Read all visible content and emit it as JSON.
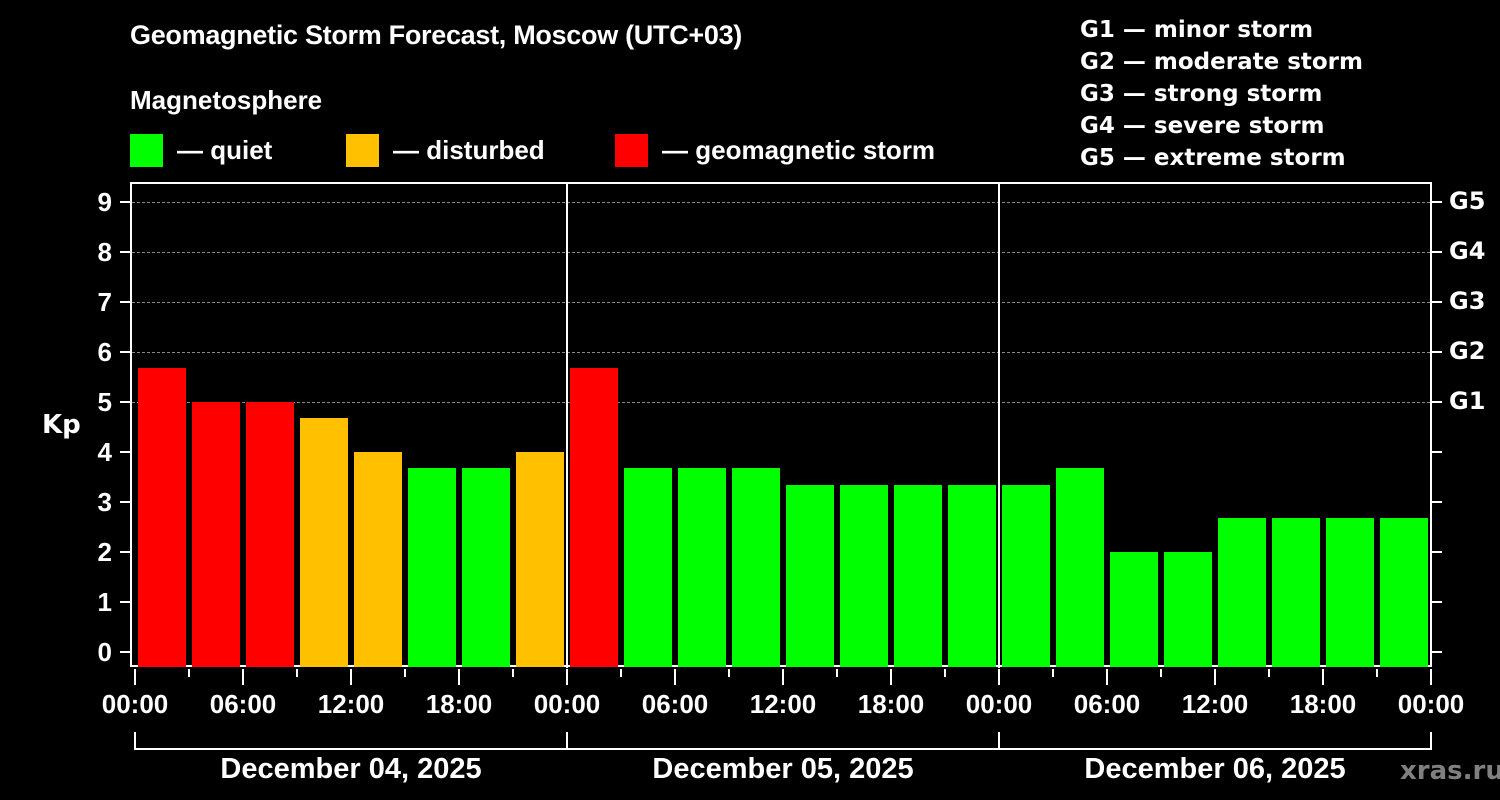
{
  "header": {
    "title": "Geomagnetic Storm Forecast, Moscow (UTC+03)",
    "subtitle": "Magnetosphere"
  },
  "legend": [
    {
      "label": "— quiet",
      "color": "#00ff00"
    },
    {
      "label": "— disturbed",
      "color": "#ffc000"
    },
    {
      "label": "— geomagnetic storm",
      "color": "#ff0000"
    }
  ],
  "g_legend": [
    "G1 — minor storm",
    "G2 — moderate storm",
    "G3 — strong storm",
    "G4 — severe storm",
    "G5 — extreme storm"
  ],
  "axis": {
    "ylabel": "Kp",
    "yticks": [
      "0",
      "1",
      "2",
      "3",
      "4",
      "5",
      "6",
      "7",
      "8",
      "9"
    ],
    "right_labels": [
      {
        "kp": 5,
        "label": "G1"
      },
      {
        "kp": 6,
        "label": "G2"
      },
      {
        "kp": 7,
        "label": "G3"
      },
      {
        "kp": 8,
        "label": "G4"
      },
      {
        "kp": 9,
        "label": "G5"
      }
    ],
    "xticks": [
      "00:00",
      "06:00",
      "12:00",
      "18:00",
      "00:00",
      "06:00",
      "12:00",
      "18:00",
      "00:00",
      "06:00",
      "12:00",
      "18:00",
      "00:00"
    ],
    "dates": [
      "December 04, 2025",
      "December 05, 2025",
      "December 06, 2025"
    ]
  },
  "watermark": "xras.ru",
  "colors": {
    "quiet": "#00ff00",
    "disturbed": "#ffc000",
    "storm": "#ff0000"
  },
  "chart_data": {
    "type": "bar",
    "title": "Geomagnetic Storm Forecast, Moscow (UTC+03)",
    "ylabel": "Kp",
    "xlabel": "",
    "ylim": [
      0,
      9
    ],
    "grid": true,
    "interval_hours": 3,
    "categories": [
      "Dec 04 00:00",
      "Dec 04 03:00",
      "Dec 04 06:00",
      "Dec 04 09:00",
      "Dec 04 12:00",
      "Dec 04 15:00",
      "Dec 04 18:00",
      "Dec 04 21:00",
      "Dec 05 00:00",
      "Dec 05 03:00",
      "Dec 05 06:00",
      "Dec 05 09:00",
      "Dec 05 12:00",
      "Dec 05 15:00",
      "Dec 05 18:00",
      "Dec 05 21:00",
      "Dec 06 00:00",
      "Dec 06 03:00",
      "Dec 06 06:00",
      "Dec 06 09:00",
      "Dec 06 12:00",
      "Dec 06 15:00",
      "Dec 06 18:00",
      "Dec 06 21:00"
    ],
    "values": [
      5.67,
      5.0,
      5.0,
      4.67,
      4.0,
      3.67,
      3.67,
      4.0,
      5.67,
      3.67,
      3.67,
      3.67,
      3.33,
      3.33,
      3.33,
      3.33,
      3.33,
      3.67,
      2.0,
      2.0,
      2.67,
      2.67,
      2.67,
      2.67
    ],
    "status": [
      "storm",
      "storm",
      "storm",
      "disturbed",
      "disturbed",
      "quiet",
      "quiet",
      "disturbed",
      "storm",
      "quiet",
      "quiet",
      "quiet",
      "quiet",
      "quiet",
      "quiet",
      "quiet",
      "quiet",
      "quiet",
      "quiet",
      "quiet",
      "quiet",
      "quiet",
      "quiet",
      "quiet"
    ],
    "legend": [
      "quiet",
      "disturbed",
      "geomagnetic storm"
    ],
    "right_axis": {
      "5": "G1",
      "6": "G2",
      "7": "G3",
      "8": "G4",
      "9": "G5"
    }
  }
}
